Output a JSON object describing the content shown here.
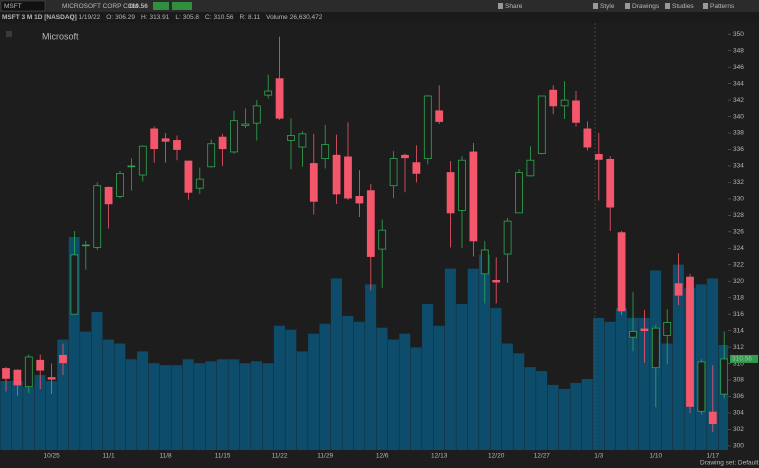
{
  "chart_data": {
    "type": "candlestick",
    "symbol": "MSFT",
    "company": "MICROSOFT CORP COM",
    "last": 310.56,
    "title": "MSFT 3 M 1D [NASDAQ]",
    "info": [
      {
        "label": "D:",
        "value": "1/19/22"
      },
      {
        "label": "O:",
        "value": "306.29"
      },
      {
        "label": "H:",
        "value": "313.91"
      },
      {
        "label": "L:",
        "value": "305.8"
      },
      {
        "label": "C:",
        "value": "310.56"
      },
      {
        "label": "R:",
        "value": "8.11"
      },
      {
        "label": "Volume",
        "value": "26,630,472"
      }
    ],
    "toolbar": [
      "Share",
      "Style",
      "Drawings",
      "Studies",
      "Patterns"
    ],
    "watermark": "Microsoft",
    "footer": "Drawing set: Default",
    "up_color": "#2fa84f",
    "down_color": "#f4566b",
    "volume_color": "#0d4d6b",
    "categories": [
      null,
      null,
      null,
      null,
      "10/25",
      null,
      null,
      null,
      null,
      "11/1",
      null,
      null,
      null,
      null,
      "11/8",
      null,
      null,
      null,
      null,
      "11/15",
      null,
      null,
      null,
      null,
      "11/22",
      null,
      null,
      null,
      "11/29",
      null,
      null,
      null,
      null,
      "12/6",
      null,
      null,
      null,
      null,
      "12/13",
      null,
      null,
      null,
      null,
      "12/20",
      null,
      null,
      null,
      "12/27",
      null,
      null,
      null,
      null,
      "1/3",
      null,
      null,
      null,
      null,
      "1/10",
      null,
      null,
      null,
      null,
      "1/17",
      null
    ],
    "open": [
      309.4,
      309.2,
      307.2,
      310.4,
      308.3,
      311.0,
      316.0,
      324.3,
      324.1,
      331.4,
      330.3,
      333.9,
      332.9,
      338.5,
      337.3,
      337.1,
      334.6,
      331.3,
      333.9,
      337.5,
      335.7,
      338.9,
      339.2,
      342.6,
      344.6,
      337.1,
      336.3,
      334.3,
      334.9,
      335.3,
      335.1,
      330.3,
      331.0,
      323.9,
      331.6,
      335.3,
      334.4,
      334.9,
      340.7,
      333.2,
      328.6,
      335.7,
      320.9,
      320.1,
      323.3,
      328.3,
      332.8,
      335.5,
      343.2,
      341.3,
      341.9,
      338.5,
      335.4,
      334.8,
      325.9,
      313.2,
      314.2,
      309.5,
      313.4,
      319.7,
      320.5,
      304.2,
      304.1,
      306.29
    ],
    "high": [
      309.6,
      309.3,
      311.1,
      311.1,
      310.0,
      312.4,
      326.1,
      324.9,
      332.0,
      331.5,
      333.4,
      334.9,
      336.5,
      338.8,
      338.0,
      337.7,
      334.6,
      333.8,
      337.2,
      337.9,
      340.7,
      341.0,
      342.0,
      345.1,
      349.7,
      339.8,
      338.2,
      337.9,
      339.0,
      337.8,
      339.3,
      333.5,
      331.8,
      327.5,
      335.8,
      335.5,
      336.5,
      342.6,
      343.8,
      334.6,
      335.2,
      336.8,
      324.9,
      322.9,
      327.7,
      333.6,
      336.4,
      342.5,
      343.8,
      344.3,
      343.1,
      339.4,
      338.0,
      335.2,
      326.1,
      318.7,
      316.5,
      314.7,
      316.6,
      323.4,
      320.9,
      310.5,
      309.8,
      313.91
    ],
    "low": [
      306.6,
      306.1,
      306.4,
      306.9,
      306.3,
      308.6,
      316.0,
      321.4,
      323.8,
      326.4,
      330.1,
      331.0,
      332.1,
      334.4,
      334.4,
      334.7,
      329.9,
      330.6,
      333.8,
      334.0,
      335.5,
      338.6,
      337.1,
      342.2,
      339.6,
      333.6,
      333.9,
      328.1,
      333.7,
      329.4,
      329.9,
      327.8,
      318.9,
      319.2,
      330.1,
      330.8,
      332.0,
      334.2,
      339.1,
      324.1,
      324.0,
      323.0,
      317.3,
      317.3,
      319.8,
      328.3,
      332.7,
      335.4,
      340.3,
      339.7,
      338.8,
      335.9,
      329.8,
      326.1,
      315.9,
      311.5,
      310.1,
      304.7,
      309.9,
      317.1,
      304.0,
      303.8,
      301.7,
      305.8
    ],
    "close": [
      308.2,
      307.4,
      310.8,
      309.2,
      308.1,
      310.1,
      323.2,
      324.4,
      331.6,
      329.4,
      333.1,
      334.0,
      336.4,
      336.1,
      337.0,
      336.0,
      330.8,
      332.4,
      336.7,
      336.1,
      339.5,
      339.1,
      341.3,
      343.1,
      339.8,
      337.7,
      337.9,
      329.7,
      336.6,
      330.6,
      330.1,
      329.5,
      323.0,
      326.2,
      334.9,
      335.0,
      333.1,
      342.5,
      339.4,
      328.3,
      334.7,
      324.9,
      323.8,
      319.9,
      327.3,
      333.2,
      334.7,
      342.5,
      341.3,
      342.0,
      339.3,
      336.3,
      334.8,
      329.0,
      316.4,
      313.9,
      314.0,
      314.3,
      315.0,
      318.3,
      304.8,
      310.2,
      302.7,
      310.56
    ],
    "volume": [
      17500000,
      17500000,
      16000000,
      19000000,
      17500000,
      28000000,
      54000000,
      30000000,
      35000000,
      28000000,
      27000000,
      23000000,
      25000000,
      22000000,
      21500000,
      21500000,
      23000000,
      22000000,
      22500000,
      23000000,
      23000000,
      22000000,
      22500000,
      22000000,
      31500000,
      30500000,
      25000000,
      29500000,
      32000000,
      43500000,
      34000000,
      32500000,
      42000000,
      31000000,
      28000000,
      29500000,
      26000000,
      37000000,
      31500000,
      46000000,
      37000000,
      46000000,
      49500000,
      36000000,
      27000000,
      24500000,
      21000000,
      20000000,
      16500000,
      15500000,
      17000000,
      18000000,
      33500000,
      32500000,
      36000000,
      33500000,
      33500000,
      45500000,
      27000000,
      47000000,
      41000000,
      42000000,
      43500000,
      26630472
    ],
    "ylim": [
      299.5,
      351
    ],
    "volume_lim": [
      0,
      107500000
    ],
    "yticks": [
      300,
      302,
      304,
      306,
      308,
      310,
      312,
      314,
      316,
      318,
      320,
      322,
      324,
      326,
      328,
      330,
      332,
      334,
      336,
      338,
      340,
      342,
      344,
      346,
      348,
      350
    ]
  }
}
